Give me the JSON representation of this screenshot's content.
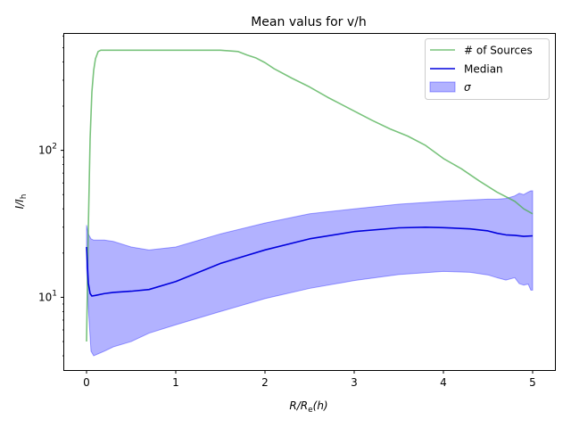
{
  "chart_data": {
    "type": "line",
    "title": "Mean valus for v/h",
    "xlabel": "R/R",
    "xlabel_sub": "e",
    "xlabel_suffix": "(h)",
    "ylabel": "I/I",
    "ylabel_sub": "h",
    "xlim": [
      -0.25,
      5.25
    ],
    "ylim": [
      3.2,
      620
    ],
    "yscale": "log",
    "grid": false,
    "legend_position": "upper right",
    "x_ticks": [
      {
        "value": 0,
        "label": "0"
      },
      {
        "value": 1,
        "label": "1"
      },
      {
        "value": 2,
        "label": "2"
      },
      {
        "value": 3,
        "label": "3"
      },
      {
        "value": 4,
        "label": "4"
      },
      {
        "value": 5,
        "label": "5"
      }
    ],
    "y_ticks": [
      {
        "value": 10,
        "base": "10",
        "exp": "1"
      },
      {
        "value": 100,
        "base": "10",
        "exp": "2"
      }
    ],
    "series": [
      {
        "name": "# of Sources",
        "kind": "line",
        "color": "#4caf50",
        "x": [
          0,
          0.02,
          0.04,
          0.06,
          0.08,
          0.1,
          0.13,
          0.16,
          0.2,
          0.5,
          1.0,
          1.5,
          1.7,
          1.8,
          1.9,
          2.0,
          2.1,
          2.3,
          2.5,
          2.7,
          3.0,
          3.2,
          3.4,
          3.6,
          3.8,
          4.0,
          4.2,
          4.4,
          4.6,
          4.8,
          4.9,
          5.0
        ],
        "y": [
          5,
          30,
          120,
          250,
          350,
          420,
          470,
          480,
          480,
          480,
          480,
          480,
          470,
          445,
          425,
          395,
          360,
          310,
          270,
          230,
          185,
          160,
          140,
          125,
          108,
          88,
          75,
          62,
          52,
          45,
          40,
          37
        ]
      },
      {
        "name": "Median",
        "kind": "line",
        "color": "#0000dd",
        "x": [
          0,
          0.02,
          0.04,
          0.06,
          0.1,
          0.2,
          0.3,
          0.5,
          0.7,
          1.0,
          1.5,
          2.0,
          2.5,
          3.0,
          3.5,
          3.8,
          4.0,
          4.3,
          4.5,
          4.6,
          4.7,
          4.8,
          4.9,
          5.0
        ],
        "y": [
          22,
          12.5,
          10.6,
          10.2,
          10.3,
          10.6,
          10.8,
          11.0,
          11.3,
          12.8,
          17.0,
          21.0,
          25.0,
          28.0,
          29.7,
          30.0,
          29.8,
          29.2,
          28.3,
          27.3,
          26.6,
          26.4,
          26.0,
          26.2
        ]
      },
      {
        "name": "σ",
        "kind": "band",
        "color": "#0000ff",
        "alpha": 0.3,
        "x": [
          0,
          0.02,
          0.05,
          0.08,
          0.12,
          0.2,
          0.3,
          0.5,
          0.7,
          1.0,
          1.5,
          2.0,
          2.5,
          3.0,
          3.5,
          4.0,
          4.3,
          4.5,
          4.6,
          4.7,
          4.8,
          4.85,
          4.9,
          4.95,
          4.98,
          5.0
        ],
        "upper": [
          31,
          27,
          25,
          24.5,
          24.5,
          24.5,
          24,
          22,
          21,
          22,
          27,
          32,
          37,
          40,
          43,
          45,
          46,
          46.5,
          46.5,
          47,
          49,
          51,
          50,
          52,
          53,
          53
        ],
        "lower": [
          16,
          8.5,
          4.3,
          4.0,
          4.1,
          4.3,
          4.6,
          5.0,
          5.7,
          6.5,
          8.0,
          9.8,
          11.5,
          13.0,
          14.3,
          15.0,
          14.8,
          14.2,
          13.6,
          13.1,
          13.6,
          12.4,
          12.1,
          12.3,
          11.2,
          11.2
        ]
      }
    ],
    "legend": [
      {
        "label": "# of Sources",
        "style": "line",
        "color": "#4caf50"
      },
      {
        "label": "Median",
        "style": "line",
        "color": "#0000dd"
      },
      {
        "label": "σ",
        "style": "patch",
        "color": "#0000ff"
      }
    ]
  }
}
